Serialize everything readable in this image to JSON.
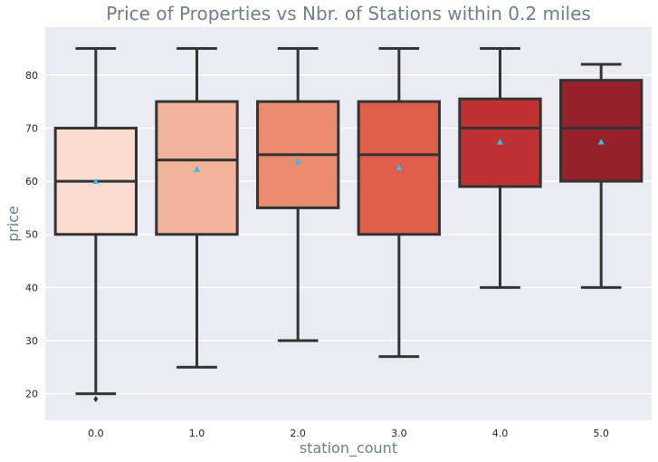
{
  "chart_data": {
    "type": "box",
    "title": "Price of Properties vs Nbr. of Stations within 0.2 miles",
    "xlabel": "station_count",
    "ylabel": "price",
    "ylim": [
      15,
      89
    ],
    "y_ticks": [
      20,
      30,
      40,
      50,
      60,
      70,
      80
    ],
    "categories": [
      "0.0",
      "1.0",
      "2.0",
      "3.0",
      "4.0",
      "5.0"
    ],
    "grid": true,
    "legend": "none",
    "colors": {
      "background": "#eaeaf2",
      "grid": "#ffffff",
      "box_edge": "#333333",
      "mean_marker": "#33bbee",
      "boxes": [
        "#fadcd0",
        "#f2b39b",
        "#e98b6f",
        "#dc5e4b",
        "#c03232",
        "#97212a"
      ]
    },
    "boxes": [
      {
        "category": "0.0",
        "whisker_low": 20,
        "q1": 50,
        "median": 60,
        "q3": 70,
        "whisker_high": 85,
        "mean": 60,
        "outliers": [
          19
        ]
      },
      {
        "category": "1.0",
        "whisker_low": 25,
        "q1": 50,
        "median": 64,
        "q3": 75,
        "whisker_high": 85,
        "mean": 62.3,
        "outliers": []
      },
      {
        "category": "2.0",
        "whisker_low": 30,
        "q1": 55,
        "median": 65,
        "q3": 75,
        "whisker_high": 85,
        "mean": 63.8,
        "outliers": []
      },
      {
        "category": "3.0",
        "whisker_low": 27,
        "q1": 50,
        "median": 65,
        "q3": 75,
        "whisker_high": 85,
        "mean": 62.6,
        "outliers": []
      },
      {
        "category": "4.0",
        "whisker_low": 40,
        "q1": 59,
        "median": 70,
        "q3": 75.5,
        "whisker_high": 85,
        "mean": 67.4,
        "outliers": []
      },
      {
        "category": "5.0",
        "whisker_low": 40,
        "q1": 60,
        "median": 70,
        "q3": 79,
        "whisker_high": 82,
        "mean": 67.4,
        "outliers": []
      }
    ]
  }
}
